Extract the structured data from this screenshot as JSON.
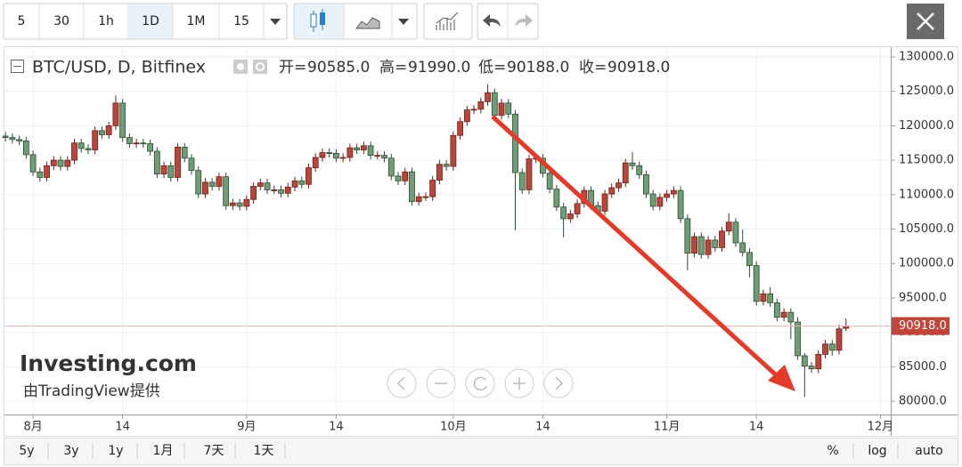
{
  "toolbar": {
    "intervals": [
      "5",
      "30",
      "1h",
      "1D",
      "1M",
      "15"
    ],
    "ranges": [
      "5y",
      "3y",
      "1y",
      "1月",
      "7天",
      "1天"
    ],
    "scale_modes": [
      "%",
      "log",
      "auto"
    ]
  },
  "watermark": {
    "brand": "Investing.com",
    "credit": "由TradingView提供"
  },
  "chart_data": {
    "type": "candlestick",
    "title": "BTC/USD, D, Bitfinex",
    "ohlc_legend": [
      {
        "name": "开=",
        "text": "90585.0"
      },
      {
        "name": "高=",
        "text": "91990.0"
      },
      {
        "name": "低=",
        "text": "90188.0"
      },
      {
        "name": "收=",
        "text": "90918.0"
      }
    ],
    "last_price_label": "90918.0",
    "up_color": "#b8463b",
    "down_color": "#6f9d75",
    "x": [
      0,
      1,
      2,
      3,
      4,
      5,
      6,
      7,
      8,
      9,
      10,
      11,
      12,
      13,
      14,
      15,
      16,
      17,
      18,
      19,
      20,
      21,
      22,
      23,
      24,
      25,
      26,
      27,
      28,
      29,
      30,
      31,
      32,
      33,
      34,
      35,
      36,
      37,
      38,
      39,
      40,
      41,
      42,
      43,
      44,
      45,
      46,
      47,
      48,
      49,
      50,
      51,
      52,
      53,
      54,
      55,
      56,
      57,
      58,
      59,
      60,
      61,
      62,
      63,
      64,
      65,
      66,
      67,
      68,
      69,
      70,
      71,
      72,
      73,
      74,
      75,
      76,
      77,
      78,
      79,
      80,
      81,
      82,
      83,
      84,
      85,
      86,
      87,
      88,
      89,
      90,
      91,
      92,
      93,
      94,
      95,
      96,
      97,
      98,
      99,
      100,
      101,
      102,
      103,
      104,
      105,
      106,
      107,
      108,
      109,
      110,
      111,
      112,
      113,
      114,
      115,
      116,
      117,
      118,
      119,
      120,
      121,
      122
    ],
    "open": [
      118500,
      118300,
      118000,
      117800,
      115800,
      113300,
      112500,
      114200,
      115000,
      114100,
      115000,
      117500,
      116700,
      116500,
      119300,
      118700,
      120000,
      123300,
      118300,
      117400,
      117500,
      117400,
      116300,
      113000,
      114200,
      112500,
      116900,
      115300,
      113500,
      110100,
      111800,
      111200,
      112600,
      108400,
      108800,
      108300,
      109300,
      111200,
      111700,
      110700,
      110700,
      110200,
      111100,
      112000,
      111500,
      113900,
      115400,
      116100,
      116000,
      115300,
      115400,
      116800,
      116500,
      117100,
      115700,
      115700,
      115300,
      112700,
      112000,
      113300,
      109000,
      109700,
      109700,
      112100,
      114400,
      114100,
      118600,
      120600,
      122300,
      122400,
      123500,
      124800,
      121500,
      123300,
      121700,
      113200,
      110700,
      115200,
      115300,
      113100,
      110800,
      108200,
      106500,
      107200,
      108700,
      110600,
      108400,
      107600,
      110100,
      111000,
      111700,
      114600,
      114200,
      112900,
      110100,
      108300,
      109600,
      110100,
      110600,
      106500,
      101500,
      103900,
      101300,
      103400,
      102300,
      104700,
      106000,
      103000,
      101600,
      99700,
      94500,
      95600,
      94300,
      92200,
      92900,
      91500,
      86600,
      85100,
      84700,
      86800,
      88300,
      87400,
      90585
    ],
    "high": [
      119100,
      118900,
      118600,
      118400,
      116400,
      113900,
      114800,
      115600,
      115600,
      115600,
      118100,
      118100,
      117300,
      119900,
      119900,
      120600,
      124400,
      123900,
      118900,
      118100,
      118100,
      118000,
      116900,
      114800,
      114800,
      117500,
      117500,
      115900,
      114100,
      112400,
      112400,
      113200,
      113200,
      109400,
      109400,
      109900,
      111800,
      112300,
      112300,
      111300,
      111300,
      111700,
      112600,
      112600,
      114500,
      116000,
      116700,
      116700,
      116600,
      116000,
      117400,
      117400,
      117700,
      117700,
      116300,
      116300,
      115900,
      113300,
      113900,
      113900,
      110300,
      110300,
      112700,
      115000,
      115000,
      119200,
      121200,
      122900,
      123000,
      124100,
      126000,
      125400,
      123900,
      123900,
      122300,
      113800,
      115800,
      115900,
      115900,
      113700,
      111400,
      108800,
      107800,
      109300,
      111200,
      111200,
      109000,
      110700,
      111600,
      112300,
      115200,
      116200,
      114800,
      113500,
      110700,
      110200,
      110700,
      111200,
      111200,
      107100,
      104500,
      104500,
      104000,
      104000,
      105300,
      107300,
      106600,
      104900,
      102200,
      100300,
      96200,
      96600,
      94900,
      93500,
      93500,
      92200,
      87000,
      85700,
      87400,
      88900,
      88900,
      91100,
      91990
    ],
    "low": [
      117700,
      117400,
      117200,
      115200,
      112700,
      111900,
      111900,
      113600,
      113500,
      113500,
      114400,
      116100,
      115900,
      115900,
      118100,
      118100,
      119400,
      117700,
      116800,
      116800,
      116800,
      115700,
      112400,
      112400,
      111900,
      111900,
      114700,
      112900,
      109500,
      109500,
      110600,
      110600,
      107800,
      107800,
      107700,
      107700,
      108700,
      110600,
      110100,
      110100,
      109600,
      109600,
      110500,
      110900,
      110900,
      113300,
      114800,
      115400,
      114700,
      114700,
      114800,
      115900,
      115900,
      115100,
      115100,
      114700,
      112100,
      111400,
      111400,
      108400,
      108400,
      109100,
      109100,
      111500,
      113500,
      113500,
      118000,
      120000,
      121700,
      121800,
      122900,
      120900,
      120900,
      121100,
      104800,
      110100,
      110100,
      114600,
      112500,
      110200,
      107600,
      103800,
      105900,
      106600,
      108100,
      107800,
      107000,
      107000,
      109500,
      110400,
      111100,
      113600,
      112300,
      109500,
      107700,
      107700,
      109000,
      109500,
      105900,
      99000,
      100900,
      100700,
      100700,
      101700,
      101700,
      104100,
      102400,
      101000,
      98000,
      93900,
      93900,
      93700,
      91600,
      91600,
      89000,
      86000,
      80600,
      84100,
      84100,
      86200,
      86600,
      86800,
      90188
    ],
    "close": [
      118300,
      118000,
      117800,
      115800,
      113300,
      112500,
      114200,
      115000,
      114100,
      115000,
      117500,
      116700,
      116500,
      119300,
      118700,
      120000,
      123300,
      118300,
      117400,
      117500,
      117400,
      116300,
      113000,
      114200,
      112500,
      116900,
      115300,
      113500,
      110100,
      111800,
      111200,
      112600,
      108400,
      108800,
      108300,
      109300,
      111200,
      111700,
      110700,
      110700,
      110200,
      111100,
      112000,
      111500,
      113900,
      115400,
      116100,
      116000,
      115300,
      115400,
      116800,
      116500,
      117100,
      115700,
      115700,
      115300,
      112700,
      112000,
      113300,
      109000,
      109700,
      109700,
      112100,
      114400,
      114100,
      118600,
      120600,
      122300,
      122400,
      123500,
      124800,
      121500,
      123300,
      121700,
      113200,
      110700,
      115200,
      115300,
      113100,
      110800,
      108200,
      106500,
      107200,
      108700,
      110600,
      108400,
      107600,
      110100,
      111000,
      111700,
      114600,
      114200,
      112900,
      110100,
      108300,
      109600,
      110100,
      110600,
      106500,
      101500,
      103900,
      101300,
      103400,
      102300,
      104700,
      106000,
      103000,
      101600,
      99700,
      94500,
      95600,
      94300,
      92200,
      92900,
      91500,
      86600,
      85100,
      84700,
      86800,
      88300,
      87400,
      90500,
      90918
    ],
    "xlim": [
      -0.15,
      128.5
    ],
    "xticks": [
      {
        "value": 4,
        "label": "8月"
      },
      {
        "value": 17,
        "label": "14"
      },
      {
        "value": 35,
        "label": "9月"
      },
      {
        "value": 48,
        "label": "14"
      },
      {
        "value": 65,
        "label": "10月"
      },
      {
        "value": 78,
        "label": "14"
      },
      {
        "value": 96,
        "label": "11月"
      },
      {
        "value": 109,
        "label": "14"
      },
      {
        "value": 127,
        "label": "12月"
      }
    ],
    "ylim": [
      78400,
      131200
    ],
    "yticks": [
      {
        "value": 80000,
        "label": "80000.0"
      },
      {
        "value": 85000,
        "label": "85000.0"
      },
      {
        "value": 90000,
        "label": "90000.0"
      },
      {
        "value": 95000,
        "label": "95000.0"
      },
      {
        "value": 100000,
        "label": "100000.0"
      },
      {
        "value": 105000,
        "label": "105000.0"
      },
      {
        "value": 110000,
        "label": "110000.0"
      },
      {
        "value": 115000,
        "label": "115000.0"
      },
      {
        "value": 120000,
        "label": "120000.0"
      },
      {
        "value": 125000,
        "label": "125000.0"
      },
      {
        "value": 130000,
        "label": "130000.0"
      }
    ],
    "grid": true
  }
}
